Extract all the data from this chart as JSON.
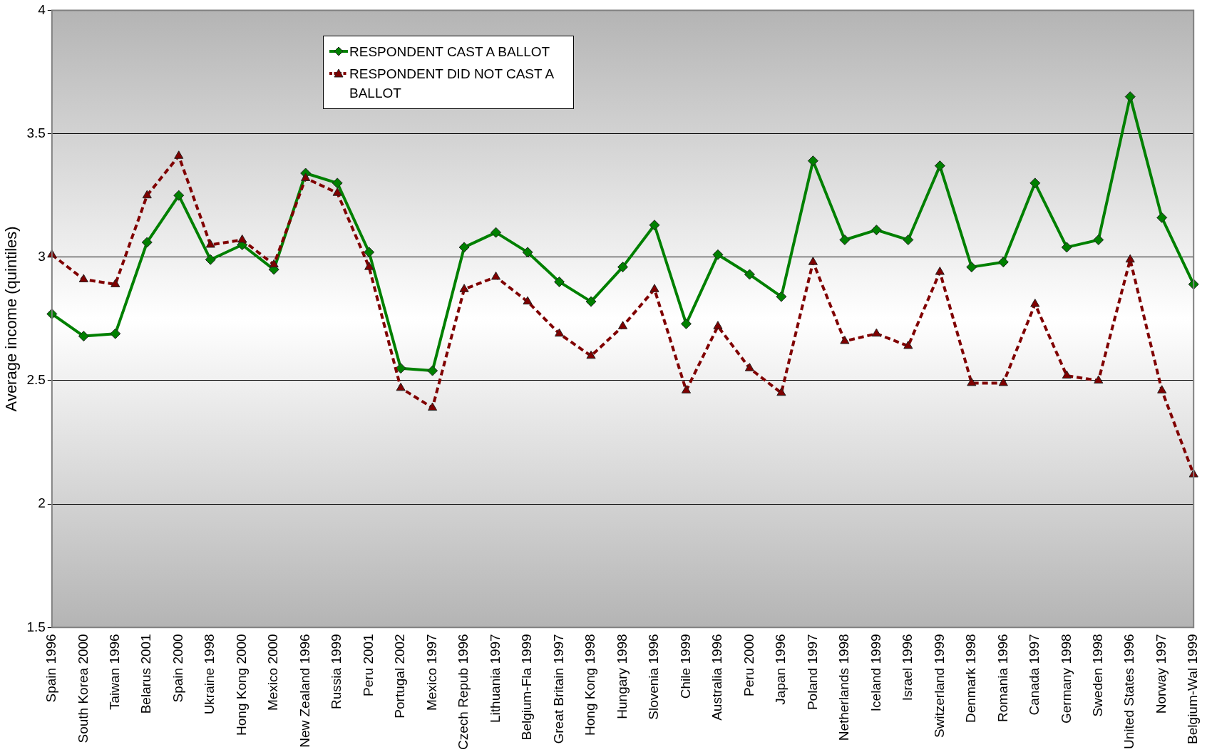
{
  "chart_data": {
    "type": "line",
    "ylabel": "Average income (quintiles)",
    "categories": [
      "Spain 1996",
      "South Korea 2000",
      "Taiwan 1996",
      "Belarus 2001",
      "Spain 2000",
      "Ukraine 1998",
      "Hong Kong 2000",
      "Mexico 2000",
      "New Zealand 1996",
      "Russia 1999",
      "Peru 2001",
      "Portugal 2002",
      "Mexico 1997",
      "Czech Repub 1996",
      "Lithuania 1997",
      "Belgium-Fla 1999",
      "Great Britain 1997",
      "Hong Kong 1998",
      "Hungary 1998",
      "Slovenia 1996",
      "Chile 1999",
      "Australia 1996",
      "Peru 2000",
      "Japan 1996",
      "Poland 1997",
      "Netherlands 1998",
      "Iceland 1999",
      "Israel 1996",
      "Switzerland 1999",
      "Denmark 1998",
      "Romania 1996",
      "Canada 1997",
      "Germany 1998",
      "Sweden 1998",
      "United States 1996",
      "Norway 1997",
      "Belgium-Wal 1999"
    ],
    "series": [
      {
        "name": "RESPONDENT CAST A BALLOT",
        "color": "#008000",
        "marker": "diamond",
        "line_style": "solid",
        "values": [
          2.77,
          2.68,
          2.69,
          3.06,
          3.25,
          2.99,
          3.05,
          2.95,
          3.34,
          3.3,
          3.02,
          2.55,
          2.54,
          3.04,
          3.1,
          3.02,
          2.9,
          2.82,
          2.96,
          3.13,
          2.73,
          3.01,
          2.93,
          2.84,
          3.39,
          3.07,
          3.11,
          3.07,
          3.37,
          2.96,
          2.98,
          3.3,
          3.04,
          3.07,
          3.65,
          3.16,
          2.89
        ]
      },
      {
        "name": "RESPONDENT DID NOT CAST A BALLOT",
        "color": "#800000",
        "marker": "triangle",
        "line_style": "dashed",
        "values": [
          3.01,
          2.91,
          2.89,
          3.25,
          3.41,
          3.05,
          3.07,
          2.97,
          3.32,
          3.26,
          2.96,
          2.47,
          2.39,
          2.87,
          2.92,
          2.82,
          2.69,
          2.6,
          2.72,
          2.87,
          2.46,
          2.72,
          2.55,
          2.45,
          2.98,
          2.66,
          2.69,
          2.64,
          2.94,
          2.49,
          2.49,
          2.81,
          2.52,
          2.5,
          2.99,
          2.46,
          2.12
        ]
      }
    ],
    "ylim": [
      1.5,
      4
    ],
    "yticks": [
      1.5,
      2,
      2.5,
      3,
      3.5,
      4
    ],
    "grid": "y",
    "legend": "top left"
  }
}
